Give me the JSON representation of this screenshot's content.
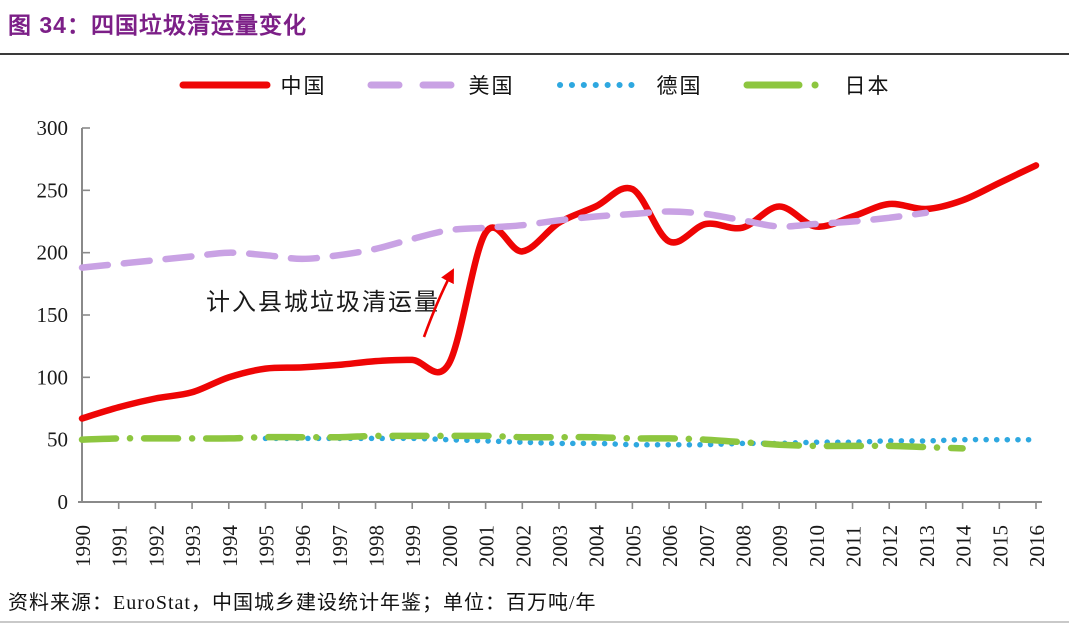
{
  "header": {
    "label": "图 34：",
    "title": "四国垃圾清运量变化"
  },
  "footer": {
    "source": "资料来源：EuroStat，中国城乡建设统计年鉴；单位：百万吨/年"
  },
  "colors": {
    "title_purple": "#7c1f87",
    "axis_gray": "#8a8a8a",
    "tick_text": "#1a1a1a",
    "annotation_text": "#1a1a1a",
    "arrow_red": "#ee0000"
  },
  "chart_data": {
    "type": "line",
    "title": "四国垃圾清运量变化",
    "unit": "百万吨/年",
    "ylim": [
      0,
      300
    ],
    "y_ticks": [
      0,
      50,
      100,
      150,
      200,
      250,
      300
    ],
    "grid": false,
    "legend_position": "top",
    "x": [
      1990,
      1991,
      1992,
      1993,
      1994,
      1995,
      1996,
      1997,
      1998,
      1999,
      2000,
      2001,
      2002,
      2003,
      2004,
      2005,
      2006,
      2007,
      2008,
      2009,
      2010,
      2011,
      2012,
      2013,
      2014,
      2015,
      2016
    ],
    "annotation": {
      "text": "计入县城垃圾清运量"
    },
    "series": [
      {
        "name": "中国",
        "color": "#ee0505",
        "style": "solid",
        "values": [
          67,
          76,
          83,
          88,
          100,
          107,
          108,
          110,
          113,
          114,
          111,
          216,
          201,
          224,
          237,
          251,
          209,
          223,
          220,
          237,
          221,
          229,
          239,
          235,
          242,
          256,
          270
        ]
      },
      {
        "name": "美国",
        "color": "#c9a2e4",
        "style": "dashed",
        "values": [
          188,
          191,
          194,
          197,
          200,
          198,
          195,
          198,
          203,
          211,
          218,
          220,
          222,
          226,
          229,
          231,
          233,
          231,
          226,
          221,
          223,
          225,
          228,
          232,
          null,
          null,
          null
        ]
      },
      {
        "name": "德国",
        "color": "#2ea8e0",
        "style": "dotted",
        "values": [
          null,
          null,
          null,
          null,
          null,
          51,
          51,
          51,
          51,
          51,
          50,
          49,
          48,
          47,
          47,
          46,
          46,
          46,
          47,
          47,
          48,
          48,
          49,
          49,
          50,
          50,
          50
        ]
      },
      {
        "name": "日本",
        "color": "#8dc63f",
        "style": "dashdot",
        "values": [
          50,
          51,
          51,
          51,
          51,
          52,
          52,
          52,
          53,
          53,
          53,
          53,
          52,
          52,
          52,
          51,
          51,
          50,
          48,
          46,
          45,
          45,
          45,
          44,
          43,
          null,
          null
        ]
      }
    ]
  }
}
